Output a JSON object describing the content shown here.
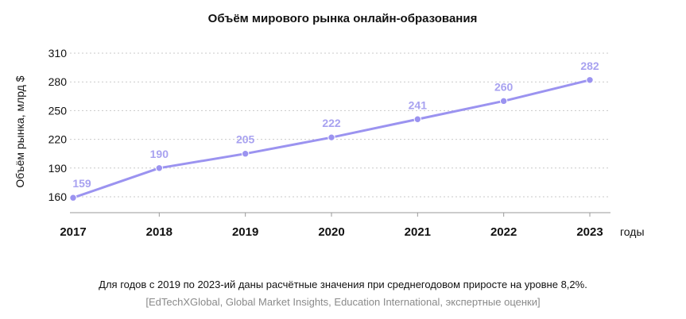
{
  "chart_data": {
    "type": "line",
    "title": "Объём мирового рынка онлайн-образования",
    "ylabel": "Объём рынка, млрд $",
    "xlabel": "годы",
    "categories": [
      "2017",
      "2018",
      "2019",
      "2020",
      "2021",
      "2022",
      "2023"
    ],
    "values": [
      159,
      190,
      205,
      222,
      241,
      260,
      282
    ],
    "yticks": [
      160,
      190,
      220,
      250,
      280,
      310
    ],
    "ylim": [
      150,
      316
    ],
    "grid": true,
    "colors": {
      "line": "#9b93f0",
      "label": "#a8a2f0",
      "grid": "#c9c9c9",
      "axis": "#9a9a9a"
    }
  },
  "notes": {
    "main": "Для годов с 2019 по 2023-ий даны расчётные значения при среднегодовом приросте на уровне 8,2%.",
    "source": "[EdTechXGlobal, Global Market Insights, Education International, экспертные оценки]"
  }
}
